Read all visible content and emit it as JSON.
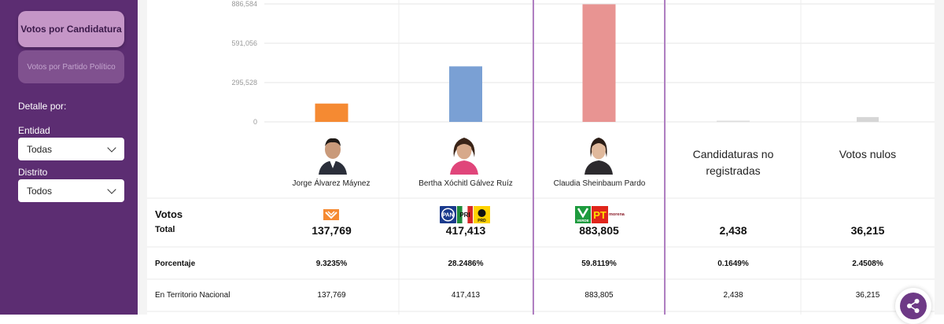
{
  "sidebar": {
    "primary_button": "Votos por Candidatura",
    "secondary_button": "Votos por Partido Político",
    "detail_label": "Detalle por:",
    "entity_label": "Entidad",
    "entity_value": "Todas",
    "district_label": "Distrito",
    "district_value": "Todos"
  },
  "chart_data": {
    "type": "bar",
    "categories": [
      "Jorge Álvarez Máynez",
      "Bertha Xóchitl Gálvez Ruíz",
      "Claudia Sheinbaum Pardo",
      "Candidaturas no registradas",
      "Votos nulos"
    ],
    "values": [
      137769,
      417413,
      883805,
      2438,
      36215
    ],
    "colors": [
      "#f58a32",
      "#7aa0d4",
      "#e89492",
      "#dddddd",
      "#d6d6d6"
    ],
    "y_ticks": [
      "0",
      "295,528",
      "591,056",
      "886,584"
    ],
    "y_tick_values": [
      0,
      295528,
      591056,
      886584
    ],
    "ylim": [
      0,
      886584
    ],
    "highlight_index": 2,
    "highlight_color": "#b07fc2"
  },
  "candidates": [
    {
      "name": "Jorge Álvarez Máynez"
    },
    {
      "name": "Bertha Xóchitl Gálvez Ruíz"
    },
    {
      "name": "Claudia Sheinbaum Pardo"
    },
    {
      "name_line1": "Candidaturas no",
      "name_line2": "registradas"
    },
    {
      "name": "Votos nulos"
    }
  ],
  "parties": {
    "pan": "PAN",
    "pri": "PRI",
    "prd": "PRD",
    "verde": "VERDE",
    "pt": "PT",
    "morena": "morena"
  },
  "table": {
    "votos_label": "Votos",
    "total_label": "Total",
    "totals": [
      "137,769",
      "417,413",
      "883,805",
      "2,438",
      "36,215"
    ],
    "percent_label": "Porcentaje",
    "percents": [
      "9.3235%",
      "28.2486%",
      "59.8119%",
      "0.1649%",
      "2.4508%"
    ],
    "national_label": "En Territorio Nacional",
    "national": [
      "137,769",
      "417,413",
      "883,805",
      "2,438",
      "36,215"
    ]
  }
}
